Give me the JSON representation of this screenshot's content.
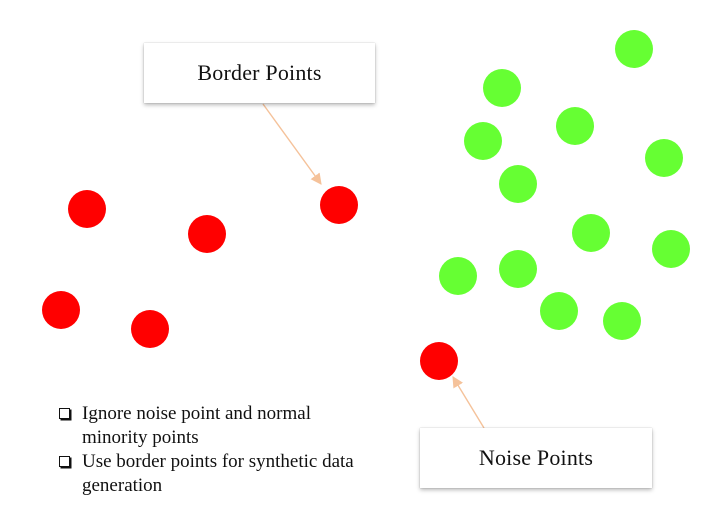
{
  "callouts": {
    "border_points": "Border Points",
    "noise_points": "Noise Points"
  },
  "notes": [
    {
      "text": "Ignore noise point and normal minority points"
    },
    {
      "text": "Use border points for synthetic data generation"
    }
  ],
  "colors": {
    "minority_point": "#ff0000",
    "majority_point": "#66ff33",
    "arrow": "#f5c29a",
    "text": "#111111"
  },
  "icons": {
    "bullet": "checkbox-icon"
  }
}
